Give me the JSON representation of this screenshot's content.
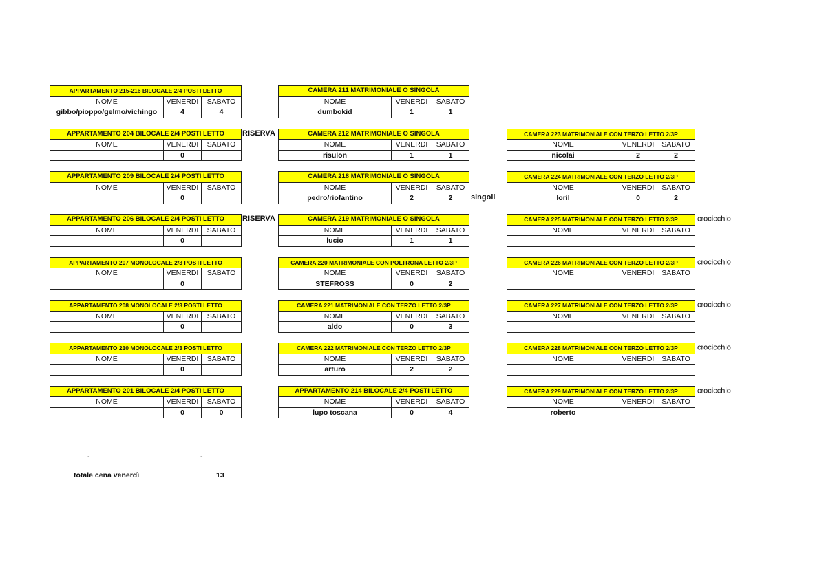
{
  "headers": {
    "nome": "NOME",
    "venerdi": "VENERDI",
    "sabato": "SABATO"
  },
  "columns": [
    [
      {
        "title": "APPARTAMENTO 215-216 BILOCALE 2/4 POSTI LETTO",
        "nome": "gibbo/pioppo/gelmo/vichingo",
        "venerdi": "4",
        "sabato": "4"
      },
      {
        "title": "APPARTAMENTO 204 BILOCALE 2/4 POSTI LETTO",
        "nome": "",
        "venerdi": "0",
        "sabato": "",
        "note_title": "RISERVA"
      },
      {
        "title": "APPARTAMENTO 209 BILOCALE 2/4 POSTI LETTO",
        "nome": "",
        "venerdi": "0",
        "sabato": ""
      },
      {
        "title": "APPARTAMENTO 206 BILOCALE 2/4 POSTI LETTO",
        "nome": "",
        "venerdi": "0",
        "sabato": "",
        "note_title": "RISERVA"
      },
      {
        "title": "APPARTAMENTO 207 MONOLOCALE 2/3 POSTI LETTO",
        "nome": "",
        "venerdi": "0",
        "sabato": ""
      },
      {
        "title": "APPARTAMENTO 208 MONOLOCALE 2/3 POSTI LETTO",
        "nome": "",
        "venerdi": "0",
        "sabato": ""
      },
      {
        "title": "APPARTAMENTO 210 MONOLOCALE 2/3 POSTI LETTO",
        "nome": "",
        "venerdi": "0",
        "sabato": ""
      },
      {
        "title": "APPARTAMENTO 201 BILOCALE 2/4 POSTI LETTO",
        "nome": "",
        "venerdi": "0",
        "sabato": "0"
      }
    ],
    [
      {
        "title": "CAMERA 211 MATRIMONIALE O SINGOLA",
        "nome": "dumbokid",
        "venerdi": "1",
        "sabato": "1"
      },
      {
        "title": "CAMERA 212 MATRIMONIALE O SINGOLA",
        "nome": "risulon",
        "venerdi": "1",
        "sabato": "1"
      },
      {
        "title": "CAMERA 218 MATRIMONIALE O SINGOLA",
        "nome": "pedro/riofantino",
        "venerdi": "2",
        "sabato": "2",
        "note_data": "singoli"
      },
      {
        "title": "CAMERA 219 MATRIMONIALE O SINGOLA",
        "nome": "lucio",
        "venerdi": "1",
        "sabato": "1"
      },
      {
        "title": "CAMERA 220 MATRIMONIALE CON POLTRONA LETTO 2/3P",
        "nome": "STEFROSS",
        "venerdi": "0",
        "sabato": "2"
      },
      {
        "title": "CAMERA 221 MATRIMONIALE CON TERZO LETTO 2/3P",
        "nome": "aldo",
        "venerdi": "0",
        "sabato": "3"
      },
      {
        "title": "CAMERA 222 MATRIMONIALE CON TERZO LETTO 2/3P",
        "nome": "arturo",
        "venerdi": "2",
        "sabato": "2"
      },
      {
        "title": "APPARTAMENTO 214 BILOCALE 2/4 POSTI LETTO",
        "nome": "lupo toscana",
        "venerdi": "0",
        "sabato": "4"
      }
    ],
    [
      null,
      {
        "title": "CAMERA 223 MATRIMONIALE CON TERZO LETTO 2/3P",
        "nome": "nicolai",
        "venerdi": "2",
        "sabato": "2"
      },
      {
        "title": "CAMERA 224 MATRIMONIALE CON TERZO LETTO 2/3P",
        "nome": "loril",
        "venerdi": "0",
        "sabato": "2"
      },
      {
        "title": "CAMERA 225 MATRIMONIALE CON TERZO LETTO 2/3P",
        "nome": "",
        "venerdi": "",
        "sabato": "",
        "note_title": "crocicchio"
      },
      {
        "title": "CAMERA 226 MATRIMONIALE CON TERZO LETTO 2/3P",
        "nome": "",
        "venerdi": "",
        "sabato": "",
        "note_title": "crocicchio"
      },
      {
        "title": "CAMERA 227 MATRIMONIALE CON TERZO LETTO 2/3P",
        "nome": "",
        "venerdi": "",
        "sabato": "",
        "note_title": "crocicchio"
      },
      {
        "title": "CAMERA 228 MATRIMONIALE CON TERZO LETTO 2/3P",
        "nome": "",
        "venerdi": "",
        "sabato": "",
        "note_title": "crocicchio"
      },
      {
        "title": "CAMERA 229 MATRIMONIALE CON TERZO LETTO 2/3P",
        "nome": "roberto",
        "venerdi": "",
        "sabato": "",
        "note_title": "crocicchio"
      }
    ]
  ],
  "footer": {
    "dash_1": "-",
    "dash_2": "-",
    "total_label": "totale cena venerdì",
    "total_value": "13"
  }
}
